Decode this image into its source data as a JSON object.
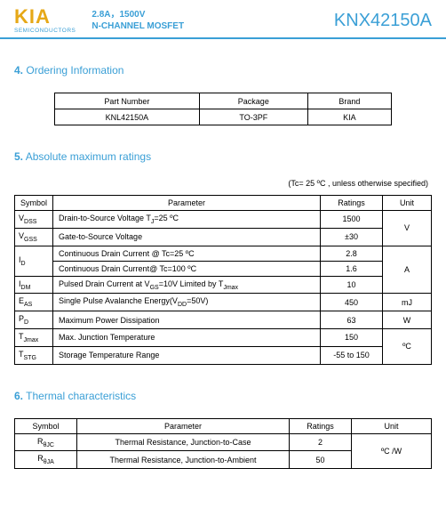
{
  "header": {
    "logo": "KIA",
    "logo_sub": "SEMICONDUCTORS",
    "desc_line1": "2.8A，1500V",
    "desc_line2": "N-CHANNEL MOSFET",
    "part_number": "KNX42150A",
    "logo_color": "#e6a817",
    "accent_color": "#3a9fd6"
  },
  "ordering": {
    "section_num": "4.",
    "section_title": "Ordering Information",
    "headers": {
      "col1": "Part Number",
      "col2": "Package",
      "col3": "Brand"
    },
    "row": {
      "col1": "KNL42150A",
      "col2": "TO-3PF",
      "col3": "KIA"
    }
  },
  "ratings": {
    "section_num": "5.",
    "section_title": "Absolute maximum ratings",
    "note": "(Tc= 25 ºC , unless otherwise specified)",
    "headers": {
      "symbol": "Symbol",
      "parameter": "Parameter",
      "ratings": "Ratings",
      "unit": "Unit"
    },
    "rows": [
      {
        "sym": "V",
        "sub": "DSS",
        "param_pre": "Drain-to-Source Voltage T",
        "param_sub": "J",
        "param_post": "=25 ºC",
        "rating": "1500",
        "unit": "V",
        "unit_rowspan": 2
      },
      {
        "sym": "V",
        "sub": "GSS",
        "param_pre": "Gate-to-Source Voltage",
        "param_sub": "",
        "param_post": "",
        "rating": "±30"
      },
      {
        "sym": "I",
        "sub": "D",
        "sym_rowspan": 2,
        "param_pre": "Continuous Drain Current @ Tc=25 ºC",
        "param_sub": "",
        "param_post": "",
        "rating": "2.8",
        "unit": "A",
        "unit_rowspan": 3
      },
      {
        "param_pre": "Continuous Drain Current@ Tc=100 ºC",
        "param_sub": "",
        "param_post": "",
        "rating": "1.6"
      },
      {
        "sym": "I",
        "sub": "DM",
        "param_pre": "Pulsed Drain Current at V",
        "param_sub": "GS",
        "param_post": "=10V Limited by T",
        "param_sub2": "Jmax",
        "rating": "10"
      },
      {
        "sym": "E",
        "sub": "AS",
        "param_pre": "Single Pulse Avalanche Energy(V",
        "param_sub": "DD",
        "param_post": "=50V)",
        "rating": "450",
        "unit": "mJ"
      },
      {
        "sym": "P",
        "sub": "D",
        "param_pre": "Maximum Power Dissipation",
        "param_sub": "",
        "param_post": "",
        "rating": "63",
        "unit": "W"
      },
      {
        "sym": "T",
        "sub": "Jmax",
        "param_pre": "Max. Junction Temperature",
        "param_sub": "",
        "param_post": "",
        "rating": "150",
        "unit": "ºC",
        "unit_rowspan": 2
      },
      {
        "sym": "T",
        "sub": "STG",
        "param_pre": "Storage Temperature Range",
        "param_sub": "",
        "param_post": "",
        "rating": "-55 to 150"
      }
    ]
  },
  "thermal": {
    "section_num": "6.",
    "section_title": "Thermal characteristics",
    "headers": {
      "symbol": "Symbol",
      "parameter": "Parameter",
      "ratings": "Ratings",
      "unit": "Unit"
    },
    "rows": [
      {
        "sym": "R",
        "sub": "θJC",
        "param": "Thermal Resistance, Junction-to-Case",
        "rating": "2",
        "unit": "ºC /W",
        "unit_rowspan": 2
      },
      {
        "sym": "R",
        "sub": "θJA",
        "param": "Thermal Resistance, Junction-to-Ambient",
        "rating": "50"
      }
    ]
  }
}
